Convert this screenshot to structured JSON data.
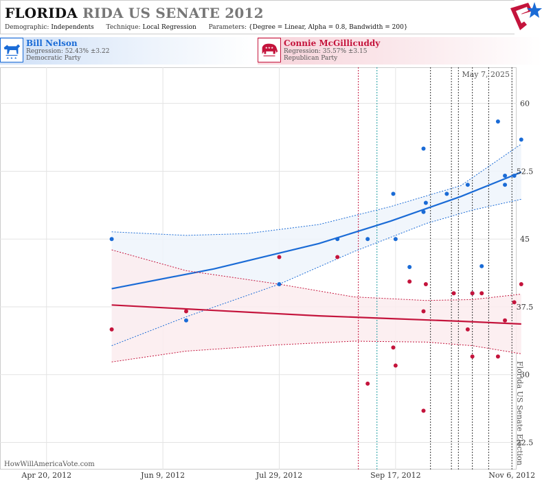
{
  "header": {
    "title_state": "FLORIDA",
    "title_rest": "RIDA US SENATE 2012",
    "demographic_label": "Demographic:",
    "demographic_value": "Independents",
    "technique_label": "Technique:",
    "technique_value": "Local Regression",
    "parameters_label": "Parameters:",
    "parameters_value": "{Degree = Linear, Alpha = 0.8, Bandwidth = 200}"
  },
  "candidates": [
    {
      "name": "Bill Nelson",
      "regression": "Regression: 52.43% ±3.22",
      "party": "Democratic Party",
      "color": "#1a6bd6"
    },
    {
      "name": "Connie McGillicuddy",
      "regression": "Regression: 35.57% ±3.15",
      "party": "Republican Party",
      "color": "#c4143c"
    }
  ],
  "chart_data": {
    "type": "scatter",
    "date_label": "May 7, 2025",
    "election_label": "Florida US Senate Election",
    "watermark": "HowWillAmericaVote.com",
    "x_ticks": [
      "Apr 20, 2012",
      "Jun 9, 2012",
      "Jul 29, 2012",
      "Sep 17, 2012",
      "Nov 6, 2012"
    ],
    "x_tick_dates": [
      "2012-04-20",
      "2012-06-09",
      "2012-07-29",
      "2012-09-17",
      "2012-11-06"
    ],
    "xlim": [
      "2012-03-31",
      "2012-11-08"
    ],
    "y_ticks": [
      "22.5",
      "30",
      "37.5",
      "45",
      "52.5",
      "60"
    ],
    "ylim": [
      19.5,
      64
    ],
    "grid": true,
    "vlines": [
      {
        "date": "2012-09-01",
        "color": "#c4143c"
      },
      {
        "date": "2012-09-09",
        "color": "#1a9aa0"
      },
      {
        "date": "2012-10-02",
        "color": "#333"
      },
      {
        "date": "2012-10-11",
        "color": "#333"
      },
      {
        "date": "2012-10-14",
        "color": "#333"
      },
      {
        "date": "2012-10-20",
        "color": "#333"
      },
      {
        "date": "2012-10-27",
        "color": "#333"
      },
      {
        "date": "2012-11-06",
        "color": "#333"
      }
    ],
    "series": [
      {
        "name": "Bill Nelson",
        "color": "#1a6bd6",
        "band_color": "#eef4fc",
        "points": [
          [
            "2012-05-18",
            45
          ],
          [
            "2012-06-19",
            36
          ],
          [
            "2012-07-29",
            40
          ],
          [
            "2012-08-23",
            45
          ],
          [
            "2012-09-05",
            45
          ],
          [
            "2012-09-16",
            50
          ],
          [
            "2012-09-17",
            45
          ],
          [
            "2012-09-23",
            41.9
          ],
          [
            "2012-09-29",
            55
          ],
          [
            "2012-09-29",
            48
          ],
          [
            "2012-09-30",
            49
          ],
          [
            "2012-10-09",
            50
          ],
          [
            "2012-10-18",
            51
          ],
          [
            "2012-10-20",
            39
          ],
          [
            "2012-10-24",
            42
          ],
          [
            "2012-10-31",
            58
          ],
          [
            "2012-11-03",
            52
          ],
          [
            "2012-11-03",
            51
          ],
          [
            "2012-11-07",
            52
          ],
          [
            "2012-11-10",
            56
          ]
        ],
        "trend": [
          [
            "2012-05-18",
            39.5
          ],
          [
            "2012-07-01",
            41.7
          ],
          [
            "2012-08-15",
            44.5
          ],
          [
            "2012-09-15",
            47
          ],
          [
            "2012-10-15",
            49.7
          ],
          [
            "2012-11-10",
            52.4
          ]
        ],
        "upper": [
          [
            "2012-05-18",
            45.8
          ],
          [
            "2012-06-19",
            45.4
          ],
          [
            "2012-07-15",
            45.6
          ],
          [
            "2012-08-15",
            46.6
          ],
          [
            "2012-09-15",
            48.6
          ],
          [
            "2012-10-15",
            50.9
          ],
          [
            "2012-11-10",
            55.5
          ]
        ],
        "lower": [
          [
            "2012-05-18",
            33.2
          ],
          [
            "2012-06-19",
            36.4
          ],
          [
            "2012-07-29",
            40.0
          ],
          [
            "2012-08-30",
            43.6
          ],
          [
            "2012-09-30",
            46.7
          ],
          [
            "2012-10-20",
            48.2
          ],
          [
            "2012-11-10",
            49.4
          ]
        ]
      },
      {
        "name": "Connie McGillicuddy",
        "color": "#c4143c",
        "band_color": "#fbecef",
        "points": [
          [
            "2012-05-18",
            35
          ],
          [
            "2012-06-19",
            37
          ],
          [
            "2012-07-29",
            43
          ],
          [
            "2012-08-23",
            43
          ],
          [
            "2012-09-05",
            29
          ],
          [
            "2012-09-16",
            33
          ],
          [
            "2012-09-17",
            31
          ],
          [
            "2012-09-23",
            40.3
          ],
          [
            "2012-09-29",
            37
          ],
          [
            "2012-09-30",
            40
          ],
          [
            "2012-09-29",
            26
          ],
          [
            "2012-10-12",
            39
          ],
          [
            "2012-10-18",
            35
          ],
          [
            "2012-10-20",
            32
          ],
          [
            "2012-10-20",
            39
          ],
          [
            "2012-10-24",
            39
          ],
          [
            "2012-10-31",
            32
          ],
          [
            "2012-11-03",
            36
          ],
          [
            "2012-11-07",
            38
          ],
          [
            "2012-11-10",
            40
          ]
        ],
        "trend": [
          [
            "2012-05-18",
            37.7
          ],
          [
            "2012-07-01",
            37.1
          ],
          [
            "2012-08-15",
            36.5
          ],
          [
            "2012-09-15",
            36.2
          ],
          [
            "2012-10-15",
            35.9
          ],
          [
            "2012-11-10",
            35.6
          ]
        ],
        "upper": [
          [
            "2012-05-18",
            43.8
          ],
          [
            "2012-06-19",
            41.5
          ],
          [
            "2012-07-29",
            40.0
          ],
          [
            "2012-08-30",
            38.6
          ],
          [
            "2012-09-30",
            38.2
          ],
          [
            "2012-10-20",
            38.3
          ],
          [
            "2012-11-10",
            38.9
          ]
        ],
        "lower": [
          [
            "2012-05-18",
            31.4
          ],
          [
            "2012-06-19",
            32.6
          ],
          [
            "2012-07-29",
            33.3
          ],
          [
            "2012-08-30",
            33.7
          ],
          [
            "2012-09-30",
            33.6
          ],
          [
            "2012-10-20",
            33.2
          ],
          [
            "2012-11-10",
            32.3
          ]
        ]
      }
    ]
  }
}
